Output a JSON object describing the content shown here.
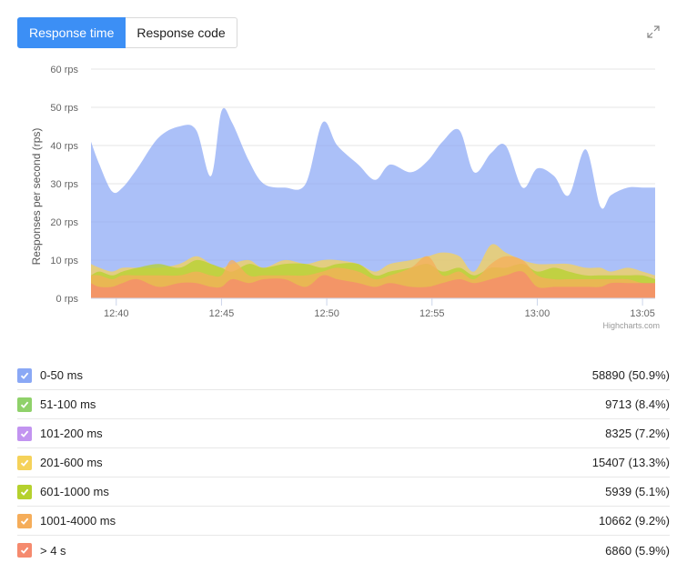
{
  "tabs": [
    {
      "label": "Response time",
      "active": true
    },
    {
      "label": "Response code",
      "active": false
    }
  ],
  "credit": "Highcharts.com",
  "legend": [
    {
      "label": "0-50 ms",
      "value": "58890 (50.9%)",
      "color": "#8aa8f5"
    },
    {
      "label": "51-100 ms",
      "value": "9713 (8.4%)",
      "color": "#8fd16a"
    },
    {
      "label": "101-200 ms",
      "value": "8325 (7.2%)",
      "color": "#c294f0"
    },
    {
      "label": "201-600 ms",
      "value": "15407 (13.3%)",
      "color": "#f5d25a"
    },
    {
      "label": "601-1000 ms",
      "value": "5939 (5.1%)",
      "color": "#b5d12e"
    },
    {
      "label": "1001-4000 ms",
      "value": "10662 (9.2%)",
      "color": "#f5ad5a"
    },
    {
      "label": "> 4 s",
      "value": "6860 (5.9%)",
      "color": "#f58a6e"
    }
  ],
  "chart_data": {
    "type": "area",
    "ylabel": "Responses per second (rps)",
    "ylim": [
      0,
      60
    ],
    "yticks": [
      "0 rps",
      "10 rps",
      "20 rps",
      "30 rps",
      "40 rps",
      "50 rps",
      "60 rps"
    ],
    "xticks": [
      "12:40",
      "12:45",
      "12:50",
      "12:55",
      "13:00",
      "13:05"
    ],
    "xtick_minutes": [
      40,
      45,
      50,
      55,
      60,
      65
    ],
    "xlim_minutes": [
      38.8,
      65.6
    ],
    "x_minutes": [
      38.8,
      39.2,
      39.8,
      40.3,
      41.0,
      42.0,
      43.0,
      43.8,
      44.5,
      45.0,
      45.5,
      46.3,
      47.0,
      48.0,
      49.0,
      49.8,
      50.5,
      51.5,
      52.3,
      53.0,
      54.0,
      54.8,
      55.5,
      56.3,
      57.0,
      57.8,
      58.5,
      59.3,
      60.0,
      60.8,
      61.5,
      62.3,
      63.0,
      63.5,
      64.3,
      65.0,
      65.6
    ],
    "series": [
      {
        "name": "0-50 ms",
        "color": "#8aa8f5",
        "values": [
          41,
          35,
          28,
          29,
          34,
          42,
          45,
          44,
          32,
          49,
          46,
          36,
          30,
          29,
          30,
          46,
          40,
          35,
          31,
          35,
          33,
          36,
          41,
          44,
          33,
          38,
          40,
          29,
          34,
          32,
          27,
          39,
          24,
          27,
          29,
          29,
          29
        ]
      },
      {
        "name": "201-600 ms",
        "color": "#f5d25a",
        "values": [
          9,
          8,
          7,
          8,
          8,
          8,
          9,
          11,
          9,
          8,
          9,
          10,
          8,
          10,
          9,
          10,
          10,
          9,
          7,
          9,
          10,
          11,
          12,
          11,
          7,
          14,
          12,
          10,
          9,
          9,
          9,
          8,
          8,
          7,
          8,
          7,
          6
        ]
      },
      {
        "name": "601-1000 ms",
        "color": "#b5d12e",
        "values": [
          6,
          7,
          6,
          7,
          8,
          9,
          8,
          10,
          9,
          8,
          7,
          9,
          8,
          9,
          9,
          8,
          9,
          9,
          6,
          7,
          8,
          9,
          7,
          8,
          6,
          8,
          8,
          9,
          7,
          8,
          7,
          6,
          6,
          6,
          6,
          6,
          5
        ]
      },
      {
        "name": "1001-4000 ms",
        "color": "#f5ad5a",
        "values": [
          6,
          6,
          5,
          6,
          6,
          6,
          6,
          7,
          6,
          6,
          10,
          6,
          6,
          6,
          6,
          7,
          8,
          7,
          5,
          6,
          8,
          11,
          6,
          7,
          5,
          9,
          11,
          10,
          6,
          5,
          5,
          5,
          5,
          5,
          5,
          4,
          4
        ]
      },
      {
        "name": "> 4 s",
        "color": "#f58a6e",
        "values": [
          4,
          3,
          3,
          4,
          5,
          3,
          4,
          4,
          3,
          3,
          5,
          4,
          5,
          5,
          3,
          6,
          5,
          4,
          3,
          4,
          3,
          3,
          4,
          5,
          4,
          5,
          6,
          7,
          3,
          3,
          3,
          3,
          3,
          4,
          4,
          4,
          4
        ]
      }
    ]
  }
}
